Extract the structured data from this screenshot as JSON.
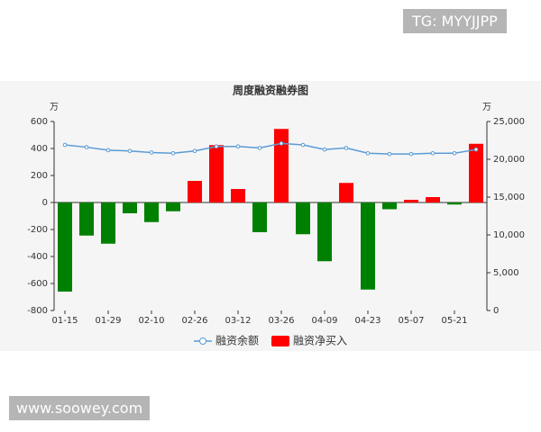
{
  "chart_data": {
    "type": "combo",
    "title": "周度融资融券图",
    "y_label": "万",
    "y2_label": "万",
    "categories": [
      "01-15",
      null,
      "01-29",
      null,
      "02-10",
      null,
      "02-26",
      null,
      "03-12",
      null,
      "03-26",
      null,
      "04-09",
      null,
      "04-23",
      null,
      "05-07",
      null,
      "05-21",
      null
    ],
    "series": [
      {
        "name": "融资余额",
        "type": "line",
        "axis": "y2",
        "color": "#5b9bd5",
        "values": [
          21900,
          21600,
          21200,
          21100,
          20900,
          20800,
          21100,
          21700,
          21700,
          21500,
          22100,
          21900,
          21300,
          21500,
          20800,
          20700,
          20700,
          20800,
          20800,
          21300
        ]
      },
      {
        "name": "融资净买入",
        "type": "bar",
        "color": "#ff0000",
        "negative_color": "#008000",
        "values": [
          -660,
          -245,
          -305,
          -80,
          -145,
          -65,
          160,
          425,
          100,
          -220,
          545,
          -235,
          -435,
          145,
          -645,
          -50,
          20,
          40,
          -15,
          435
        ]
      }
    ],
    "ylim": [
      -800,
      600
    ],
    "yticks": [
      -800,
      -600,
      -400,
      -200,
      0,
      200,
      400,
      600
    ],
    "y2lim": [
      0,
      25000
    ],
    "y2ticks": [
      0,
      {
        "value": 5000,
        "label": "5,000"
      },
      {
        "value": 10000,
        "label": "10,000"
      },
      {
        "value": 15000,
        "label": "15,000"
      },
      {
        "value": 20000,
        "label": "20,000"
      },
      {
        "value": 25000,
        "label": "25,000"
      }
    ],
    "legend": "bottom"
  },
  "overlays": [
    "TG: MYYJJPP",
    "www.soowey.com"
  ]
}
